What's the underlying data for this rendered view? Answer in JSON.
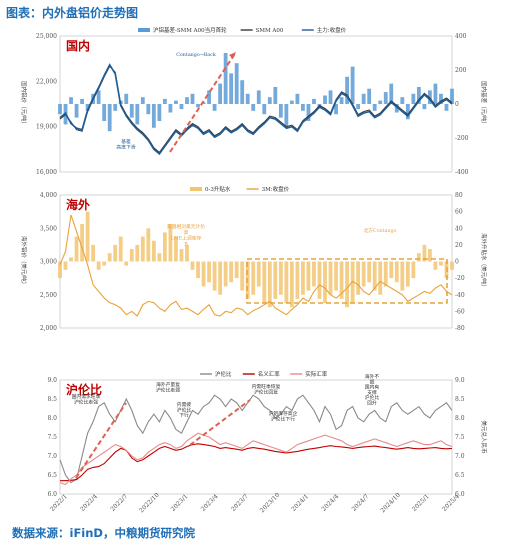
{
  "page": {
    "title": "图表：内外盘铝价走势图",
    "source": "数据来源：iFinD，中粮期货研究院"
  },
  "chart_data": [
    {
      "type": "line",
      "region_label": "国内",
      "legend": [
        "沪铝基差-SMM A00当月首轮",
        "SMM A00",
        "主力:收盘价"
      ],
      "ylabel_left": "国内铝价（元/吨）",
      "ylabel_right": "国内基差（元/吨）",
      "ylim": [
        16000,
        25000
      ],
      "y2lim": [
        -400,
        400
      ],
      "yticks": [
        "25,000",
        "22,000",
        "19,000",
        "16,000"
      ],
      "y2ticks": [
        "400",
        "200",
        "0",
        "-200",
        "-400"
      ],
      "annotations": [
        "Contango→Back",
        "基差\n高度下滑"
      ],
      "series": [
        {
          "name": "SMM A00",
          "color": "#3a3a3a",
          "values": [
            19500,
            19800,
            19300,
            18800,
            18700,
            20000,
            20800,
            21500,
            22300,
            23000,
            22600,
            20500,
            19800,
            19300,
            18900,
            18600,
            18200,
            17600,
            17300,
            17800,
            18300,
            18800,
            18500,
            18900,
            19200,
            19000,
            18600,
            18800,
            18400,
            18600,
            19000,
            18700,
            18900,
            19200,
            18800,
            18600,
            19000,
            19300,
            19700,
            19600,
            19300,
            19000,
            19100,
            18800,
            19400,
            19700,
            20000,
            20400,
            20200,
            19900,
            20800,
            21300,
            21100,
            20500,
            19800,
            20000,
            20100,
            19700,
            19900,
            20300,
            20700,
            20400,
            20100,
            19800,
            20300,
            20800,
            21200,
            20900,
            20400,
            20700,
            20900,
            20600
          ]
        },
        {
          "name": "主力:收盘价",
          "color": "#1f5d99",
          "values": [
            19600,
            19900,
            19200,
            18900,
            18800,
            20100,
            20900,
            21600,
            22400,
            23100,
            22500,
            20400,
            19700,
            19200,
            18800,
            18500,
            18100,
            17500,
            17200,
            17700,
            18200,
            18700,
            18400,
            18800,
            19100,
            18900,
            18500,
            18700,
            18300,
            18500,
            18900,
            18600,
            18800,
            19100,
            18700,
            18500,
            18900,
            19200,
            19600,
            19500,
            19200,
            18900,
            19000,
            18700,
            19300,
            19600,
            19900,
            20300,
            20100,
            19800,
            20700,
            21200,
            21000,
            20400,
            19700,
            19900,
            20000,
            19600,
            19800,
            20200,
            20600,
            20300,
            20000,
            19700,
            20200,
            20700,
            21100,
            20800,
            20300,
            20600,
            20800,
            20500
          ]
        },
        {
          "name": "沪铝基差-SMM A00当月首轮",
          "color": "#5b9bd5",
          "values": [
            -60,
            -120,
            40,
            -80,
            30,
            -40,
            60,
            80,
            -100,
            -160,
            -40,
            20,
            60,
            -80,
            -120,
            40,
            -60,
            -140,
            -100,
            30,
            -50,
            20,
            -30,
            40,
            60,
            -20,
            10,
            80,
            -40,
            120,
            300,
            180,
            240,
            140,
            60,
            -40,
            80,
            -60,
            40,
            100,
            -80,
            -140,
            20,
            60,
            -40,
            -100,
            30,
            -20,
            50,
            80,
            -60,
            40,
            160,
            220,
            -30,
            60,
            90,
            -40,
            20,
            70,
            120,
            -50,
            40,
            -90,
            60,
            100,
            -30,
            80,
            120,
            60,
            -40,
            90
          ]
        }
      ]
    },
    {
      "type": "line",
      "region_label": "海外",
      "legend": [
        "0-3升贴水",
        "3M:收盘价"
      ],
      "ylabel_left": "海外铝价（美元/吨）",
      "ylabel_right": "海外升贴水（美元/吨）",
      "ylim": [
        2000,
        4000
      ],
      "y2lim": [
        -80,
        80
      ],
      "yticks": [
        "4,000",
        "3,500",
        "3,000",
        "2,500",
        "2,000"
      ],
      "y2ticks": [
        "80",
        "60",
        "40",
        "20",
        "0",
        "-20",
        "-40",
        "-60",
        "-80"
      ],
      "annotations": [
        "美国相对美元计价\n高\nLME上调库存\nB",
        "北方Contango"
      ],
      "series": [
        {
          "name": "3M:收盘价",
          "color": "#e8a33a",
          "values": [
            2950,
            3150,
            3700,
            3450,
            3200,
            2950,
            2650,
            2550,
            2450,
            2380,
            2350,
            2300,
            2200,
            2250,
            2180,
            2350,
            2400,
            2380,
            2300,
            2250,
            2350,
            2400,
            2280,
            2300,
            2250,
            2200,
            2280,
            2350,
            2200,
            2180,
            2250,
            2230,
            2300,
            2280,
            2200,
            2260,
            2300,
            2350,
            2400,
            2300,
            2250,
            2200,
            2280,
            2350,
            2450,
            2400,
            2550,
            2650,
            2600,
            2500,
            2450,
            2520,
            2600,
            2700,
            2650,
            2550,
            2500,
            2600,
            2700,
            2650,
            2600,
            2550,
            2500,
            2400,
            2450,
            2500,
            2550,
            2520,
            2600,
            2650,
            2550,
            2500
          ]
        },
        {
          "name": "0-3升贴水",
          "color": "#f2c572",
          "values": [
            -20,
            -10,
            5,
            30,
            45,
            60,
            20,
            -10,
            -5,
            10,
            20,
            30,
            -5,
            15,
            20,
            30,
            40,
            25,
            10,
            35,
            45,
            30,
            15,
            20,
            -10,
            -20,
            -30,
            -25,
            -35,
            -40,
            -30,
            -25,
            -20,
            -35,
            -45,
            -40,
            -30,
            -50,
            -55,
            -45,
            -40,
            -50,
            -55,
            -45,
            -40,
            -35,
            -30,
            -45,
            -50,
            -40,
            -35,
            -45,
            -55,
            -50,
            -40,
            -30,
            -25,
            -35,
            -40,
            -30,
            -20,
            -25,
            -35,
            -30,
            -20,
            10,
            20,
            15,
            -10,
            -5,
            -20,
            -10
          ]
        }
      ]
    },
    {
      "type": "line",
      "region_label": "沪伦比",
      "legend": [
        "沪伦比",
        "名义汇率",
        "实际汇率"
      ],
      "ylabel_right": "美元兑人民币",
      "ylim": [
        6.0,
        9.0
      ],
      "yticks": [
        "9.0",
        "8.5",
        "8.0",
        "7.5",
        "7.0",
        "6.5",
        "6.0"
      ],
      "y2ticks": [
        "9.0",
        "8.5",
        "8.0",
        "7.5",
        "7.0",
        "6.5",
        "6.0"
      ],
      "xticks": [
        "2022/1",
        "2022/4",
        "2022/7",
        "2022/10",
        "2023/1",
        "2023/4",
        "2023/7",
        "2023/10",
        "2024/1",
        "2024/4",
        "2024/7",
        "2024/10",
        "2025/1",
        "2025/4"
      ],
      "annotations": [
        "国内需求旺季\n沪伦比走强",
        "海外产量复\n沪伦比走弱",
        "内需疲\n沪伦比\n下行",
        "沪铝库存高企\n沪伦比下行",
        "内需旺季恢复\n沪伦比回复",
        "海外不\n振\n国内有\n支撑\n沪伦比\n回升"
      ],
      "series": [
        {
          "name": "沪伦比",
          "color": "#8a8a8a",
          "values": [
            6.9,
            6.5,
            6.3,
            6.4,
            7.0,
            7.6,
            7.9,
            8.3,
            8.4,
            8.1,
            7.9,
            8.2,
            8.5,
            8.2,
            7.8,
            7.6,
            7.9,
            8.1,
            7.9,
            8.2,
            8.0,
            7.7,
            7.6,
            7.9,
            8.2,
            8.1,
            8.3,
            8.4,
            8.6,
            8.5,
            8.3,
            8.5,
            8.4,
            8.2,
            8.4,
            8.6,
            8.5,
            8.3,
            8.2,
            8.0,
            8.1,
            8.3,
            8.2,
            8.5,
            8.6,
            8.4,
            8.2,
            7.9,
            8.3,
            8.1,
            7.7,
            7.8,
            8.2,
            8.3,
            8.0,
            7.9,
            8.1,
            8.2,
            8.0,
            7.9,
            8.3,
            8.4,
            8.2,
            8.1,
            8.2,
            8.3,
            8.1,
            8.0,
            8.2,
            8.3,
            8.4,
            8.2
          ]
        },
        {
          "name": "名义汇率",
          "color": "#c00000",
          "values": [
            6.35,
            6.35,
            6.36,
            6.38,
            6.5,
            6.65,
            6.7,
            6.72,
            6.8,
            6.95,
            7.1,
            7.2,
            7.15,
            6.95,
            6.85,
            6.9,
            7.0,
            7.1,
            7.2,
            7.25,
            7.2,
            7.15,
            7.18,
            7.25,
            7.3,
            7.32,
            7.3,
            7.28,
            7.25,
            7.2,
            7.22,
            7.2,
            7.18,
            7.15,
            7.2,
            7.22,
            7.2,
            7.18,
            7.15,
            7.12,
            7.1,
            7.08,
            7.1,
            7.12,
            7.15,
            7.18,
            7.2,
            7.22,
            7.25,
            7.27,
            7.25,
            7.24,
            7.22,
            7.2,
            7.22,
            7.24,
            7.25,
            7.26,
            7.24,
            7.22,
            7.2,
            7.18,
            7.2,
            7.22,
            7.2,
            7.19,
            7.2,
            7.21,
            7.22,
            7.2,
            7.19,
            7.2
          ]
        },
        {
          "name": "实际汇率",
          "color": "#e88a8a",
          "values": [
            6.3,
            6.25,
            6.4,
            6.5,
            6.7,
            6.8,
            6.9,
            7.0,
            7.1,
            7.2,
            7.3,
            7.25,
            7.15,
            7.0,
            6.9,
            6.95,
            7.1,
            7.2,
            7.3,
            7.35,
            7.3,
            7.2,
            7.25,
            7.4,
            7.5,
            7.6,
            7.55,
            7.5,
            7.4,
            7.3,
            7.35,
            7.3,
            7.25,
            7.2,
            7.3,
            7.4,
            7.35,
            7.3,
            7.25,
            7.2,
            7.15,
            7.1,
            7.2,
            7.3,
            7.35,
            7.4,
            7.45,
            7.5,
            7.55,
            7.5,
            7.45,
            7.4,
            7.3,
            7.25,
            7.3,
            7.35,
            7.4,
            7.45,
            7.4,
            7.35,
            7.3,
            7.25,
            7.3,
            7.35,
            7.4,
            7.35,
            7.3,
            7.3,
            7.35,
            7.4,
            7.3,
            7.25
          ]
        }
      ]
    }
  ]
}
